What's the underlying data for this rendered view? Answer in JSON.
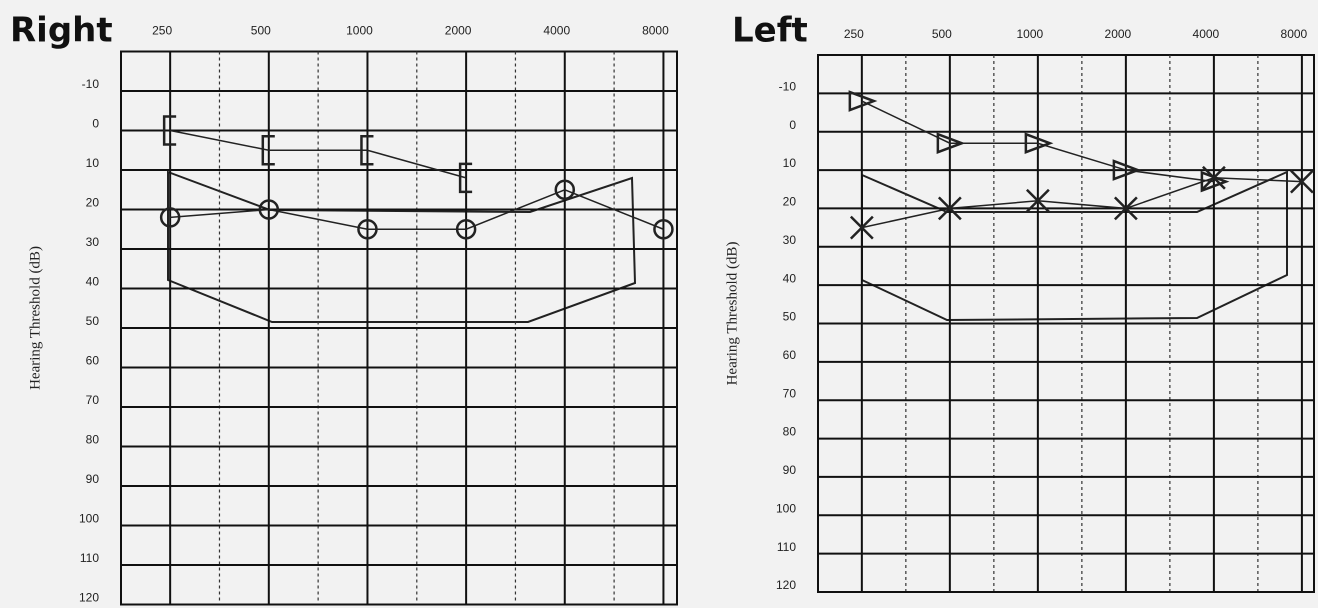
{
  "chart_data": [
    {
      "type": "audiogram",
      "title": "Right",
      "y_label": "Hearing Threshold (dB)",
      "xscale": "log",
      "y_inverted": true,
      "xlim": [
        177,
        8800
      ],
      "ylim": [
        -20,
        120
      ],
      "xticks": [
        250,
        500,
        1000,
        2000,
        4000,
        8000
      ],
      "yticks": [
        -10,
        0,
        10,
        20,
        30,
        40,
        50,
        60,
        70,
        80,
        90,
        100,
        110,
        120
      ],
      "grid": true,
      "x": [
        250,
        500,
        1000,
        2000,
        4000,
        8000
      ],
      "series": [
        {
          "marker": "circle",
          "color": "#222222",
          "values": [
            22,
            20,
            25,
            25,
            15,
            25
          ]
        },
        {
          "marker": "bracket",
          "color": "#222222",
          "values": [
            0,
            5,
            5,
            12,
            null,
            null
          ]
        }
      ]
    },
    {
      "type": "audiogram",
      "title": "Left",
      "y_label": "Hearing Threshold (dB)",
      "xscale": "log",
      "y_inverted": true,
      "xlim": [
        177,
        8800
      ],
      "ylim": [
        -20,
        120
      ],
      "xticks": [
        250,
        500,
        1000,
        2000,
        4000,
        8000
      ],
      "yticks": [
        -10,
        0,
        10,
        20,
        30,
        40,
        50,
        60,
        70,
        80,
        90,
        100,
        110,
        120
      ],
      "grid": true,
      "x": [
        250,
        500,
        1000,
        2000,
        4000,
        8000
      ],
      "series": [
        {
          "marker": "triangle",
          "color": "#222222",
          "values": [
            -8,
            3,
            3,
            10,
            13,
            null
          ]
        },
        {
          "marker": "cross",
          "color": "#222222",
          "values": [
            25,
            20,
            18,
            20,
            12,
            13
          ]
        }
      ]
    }
  ]
}
